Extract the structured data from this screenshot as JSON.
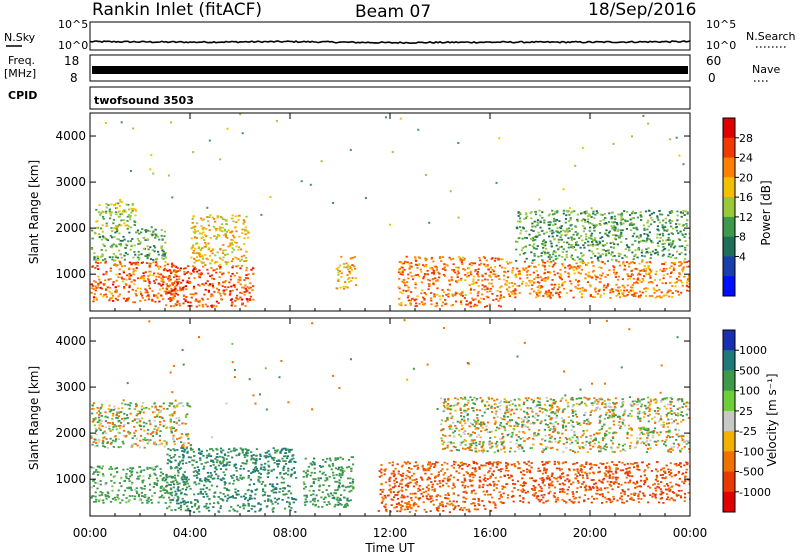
{
  "header": {
    "station": "Rankin Inlet (fitACF)",
    "beam": "Beam 07",
    "date": "18/Sep/2016"
  },
  "noise_panel": {
    "left_label": "N.Sky",
    "right_label": "N.Search",
    "tick_top": "10^5",
    "tick_bottom": "10^0"
  },
  "freq_panel": {
    "left_label_1": "Freq.",
    "left_label_2": "[MHz]",
    "right_label": "Nave",
    "left_tick_top": "18",
    "left_tick_bottom": "8",
    "right_tick_top": "60",
    "right_tick_bottom": "0"
  },
  "cpid_panel": {
    "label": "CPID",
    "program": "twofsound 3503"
  },
  "power_panel": {
    "ylabel": "Slant Range [km]",
    "colorbar_label": "Power [dB]",
    "colorbar_ticks": [
      "28",
      "24",
      "20",
      "16",
      "12",
      "8",
      "4"
    ],
    "colorbar_colors": [
      "#e00000",
      "#f03a00",
      "#ff7f00",
      "#f3c000",
      "#9ac83a",
      "#3d9a4a",
      "#1e6e5a",
      "#1a3faa",
      "#0010ff"
    ]
  },
  "velocity_panel": {
    "ylabel": "Slant Range [km]",
    "colorbar_label": "Velocity [m s⁻¹]",
    "colorbar_ticks": [
      "1000",
      "500",
      "100",
      "25",
      "-25",
      "-100",
      "-500",
      "-1000"
    ],
    "colorbar_colors": [
      "#1a2fb0",
      "#1e7a78",
      "#3e9a4a",
      "#6ccf3a",
      "#c8c8c8",
      "#f2b000",
      "#f07000",
      "#e83a00",
      "#e00000"
    ]
  },
  "xaxis": {
    "label": "Time UT",
    "ticks": [
      "00:00",
      "04:00",
      "08:00",
      "12:00",
      "16:00",
      "20:00",
      "00:00"
    ]
  },
  "chart_data": [
    {
      "type": "heatmap",
      "title": "Power",
      "ylabel": "Slant Range [km]",
      "xlabel": "Time UT",
      "y_ticks": [
        1000,
        2000,
        3000,
        4000
      ],
      "ylim": [
        200,
        4500
      ],
      "colorbar": {
        "label": "Power [dB]",
        "range": [
          0,
          32
        ],
        "ticks": [
          4,
          8,
          12,
          16,
          20,
          24,
          28
        ]
      },
      "x": [
        "00:00",
        "04:00",
        "08:00",
        "12:00",
        "16:00",
        "20:00",
        "00:00"
      ],
      "regions": [
        {
          "t_start": 0.0,
          "t_end": 3.5,
          "r_start": 400,
          "r_end": 1300,
          "power": 26
        },
        {
          "t_start": 0.0,
          "t_end": 3.0,
          "r_start": 1300,
          "r_end": 2000,
          "power": 13
        },
        {
          "t_start": 0.2,
          "t_end": 1.8,
          "r_start": 2000,
          "r_end": 2600,
          "power": 16
        },
        {
          "t_start": 3.0,
          "t_end": 6.5,
          "r_start": 300,
          "r_end": 1200,
          "power": 27
        },
        {
          "t_start": 4.0,
          "t_end": 6.3,
          "r_start": 1200,
          "r_end": 2300,
          "power": 20
        },
        {
          "t_start": 9.8,
          "t_end": 10.6,
          "r_start": 700,
          "r_end": 1400,
          "power": 22
        },
        {
          "t_start": 12.3,
          "t_end": 16.5,
          "r_start": 300,
          "r_end": 1400,
          "power": 25
        },
        {
          "t_start": 16.5,
          "t_end": 24.0,
          "r_start": 500,
          "r_end": 1300,
          "power": 24
        },
        {
          "t_start": 17.0,
          "t_end": 24.0,
          "r_start": 1300,
          "r_end": 2400,
          "power": 12
        }
      ]
    },
    {
      "type": "heatmap",
      "title": "Velocity",
      "ylabel": "Slant Range [km]",
      "xlabel": "Time UT",
      "y_ticks": [
        1000,
        2000,
        3000,
        4000
      ],
      "ylim": [
        200,
        4500
      ],
      "colorbar": {
        "label": "Velocity [m s⁻¹]",
        "range": [
          -1000,
          1000
        ],
        "ticks": [
          1000,
          500,
          100,
          25,
          -25,
          -100,
          -500,
          -1000
        ]
      },
      "x": [
        "00:00",
        "04:00",
        "08:00",
        "12:00",
        "16:00",
        "20:00",
        "00:00"
      ],
      "regions": [
        {
          "t_start": 0.0,
          "t_end": 3.5,
          "r_start": 500,
          "r_end": 1300,
          "velocity": 150
        },
        {
          "t_start": 0.0,
          "t_end": 4.0,
          "r_start": 1700,
          "r_end": 2700,
          "velocity": 0
        },
        {
          "t_start": 3.0,
          "t_end": 8.2,
          "r_start": 300,
          "r_end": 1700,
          "velocity": 300
        },
        {
          "t_start": 8.5,
          "t_end": 10.5,
          "r_start": 400,
          "r_end": 1500,
          "velocity": 200
        },
        {
          "t_start": 11.5,
          "t_end": 16.5,
          "r_start": 300,
          "r_end": 1400,
          "velocity": -300
        },
        {
          "t_start": 16.5,
          "t_end": 24.0,
          "r_start": 500,
          "r_end": 1400,
          "velocity": -350
        },
        {
          "t_start": 14.0,
          "t_end": 24.0,
          "r_start": 1600,
          "r_end": 2800,
          "velocity": 0
        }
      ]
    },
    {
      "type": "line",
      "title": "N.Sky",
      "x": [
        "00:00",
        "04:00",
        "08:00",
        "12:00",
        "16:00",
        "20:00",
        "00:00"
      ],
      "ylim": [
        "10^0",
        "10^5"
      ],
      "series": [
        {
          "name": "N.Sky",
          "values": [
            1.5,
            1.4,
            1.5,
            1.3,
            1.4,
            1.4,
            1.5
          ]
        }
      ]
    },
    {
      "type": "line",
      "title": "Freq.",
      "x": [
        "00:00",
        "04:00",
        "08:00",
        "12:00",
        "16:00",
        "20:00",
        "00:00"
      ],
      "ylim": [
        8,
        18
      ],
      "series": [
        {
          "name": "Freq.",
          "values": [
            11.5,
            11.5,
            11.5,
            11.5,
            11.5,
            11.5,
            11.5
          ]
        }
      ]
    }
  ]
}
